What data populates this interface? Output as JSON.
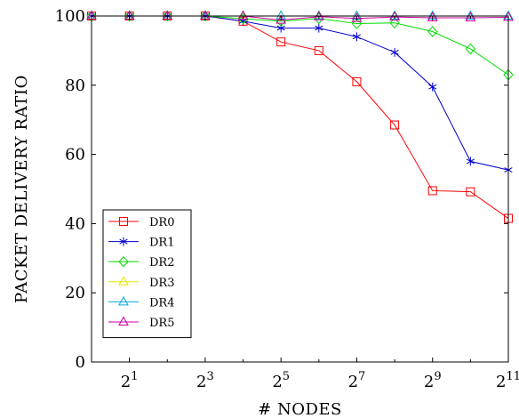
{
  "chart_data": {
    "type": "line",
    "xlabel": "# NODES",
    "ylabel": "PACKET DELIVERY RATIO",
    "x": [
      1,
      2,
      3,
      4,
      5,
      6,
      7,
      8,
      9,
      10,
      11,
      12
    ],
    "xlim": [
      1,
      12
    ],
    "ylim": [
      0,
      100
    ],
    "x_ticks": [
      {
        "x": 2,
        "base": "2",
        "exp": "1"
      },
      {
        "x": 4,
        "base": "2",
        "exp": "3"
      },
      {
        "x": 6,
        "base": "2",
        "exp": "5"
      },
      {
        "x": 8,
        "base": "2",
        "exp": "7"
      },
      {
        "x": 10,
        "base": "2",
        "exp": "9"
      },
      {
        "x": 12,
        "base": "2",
        "exp": "11"
      }
    ],
    "y_ticks": [
      0,
      20,
      40,
      60,
      80,
      100
    ],
    "grid": false,
    "legend_position": "bottom-left",
    "series": [
      {
        "name": "DR0",
        "color": "#ff0000",
        "marker": "square",
        "values": [
          100,
          100,
          100,
          100,
          98.5,
          92.5,
          90,
          81,
          68.5,
          49.5,
          49.2,
          41.5
        ]
      },
      {
        "name": "DR1",
        "color": "#0000cc",
        "marker": "star",
        "values": [
          100,
          100,
          100,
          100,
          98.5,
          96.5,
          96.5,
          94,
          89.5,
          79.5,
          58,
          55.5
        ]
      },
      {
        "name": "DR2",
        "color": "#00dd00",
        "marker": "diamond",
        "values": [
          100,
          100,
          100,
          100,
          99.2,
          98.5,
          99.3,
          97.8,
          98,
          95.5,
          90.5,
          83
        ]
      },
      {
        "name": "DR3",
        "color": "#e6e600",
        "marker": "triangle",
        "values": [
          100,
          100,
          100,
          100,
          100,
          100,
          100,
          100,
          100,
          100,
          100,
          100
        ]
      },
      {
        "name": "DR4",
        "color": "#00aadd",
        "marker": "triangle",
        "values": [
          100,
          100,
          100,
          100,
          100,
          100,
          100,
          100,
          100,
          100,
          100,
          100
        ]
      },
      {
        "name": "DR5",
        "color": "#cc0099",
        "marker": "triangle",
        "values": [
          100,
          100,
          100,
          100,
          100,
          98.8,
          99.8,
          99.3,
          99.7,
          99.5,
          99.5,
          99.6
        ]
      }
    ]
  }
}
